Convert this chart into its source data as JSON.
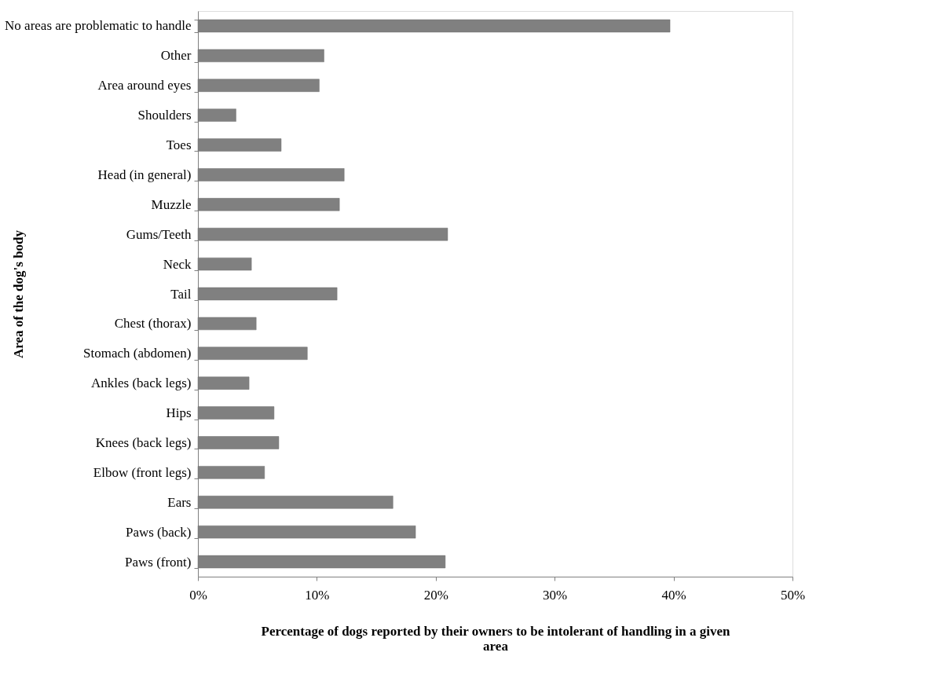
{
  "chart_data": {
    "type": "bar",
    "orientation": "horizontal",
    "xlabel": "Percentage of dogs reported by their owners to be intolerant of handling in a given area",
    "ylabel": "Area of the dog's body",
    "categories": [
      "No areas are problematic to handle",
      "Other",
      "Area around eyes",
      "Shoulders",
      "Toes",
      "Head (in general)",
      "Muzzle",
      "Gums/Teeth",
      "Neck",
      "Tail",
      "Chest (thorax)",
      "Stomach (abdomen)",
      "Ankles (back legs)",
      "Hips",
      "Knees (back legs)",
      "Elbow (front legs)",
      "Ears",
      "Paws (back)",
      "Paws (front)"
    ],
    "values": [
      39.7,
      10.6,
      10.2,
      3.2,
      7.0,
      12.3,
      11.9,
      21.0,
      4.5,
      11.7,
      4.9,
      9.2,
      4.3,
      6.4,
      6.8,
      5.6,
      16.4,
      18.3,
      20.8
    ],
    "color": "#808080",
    "xlim": [
      0,
      50
    ],
    "xticks": [
      {
        "value": 0,
        "label": "0%"
      },
      {
        "value": 10,
        "label": "10%"
      },
      {
        "value": 20,
        "label": "20%"
      },
      {
        "value": 30,
        "label": "30%"
      },
      {
        "value": 40,
        "label": "40%"
      },
      {
        "value": 50,
        "label": "50%"
      }
    ],
    "grid": false
  }
}
